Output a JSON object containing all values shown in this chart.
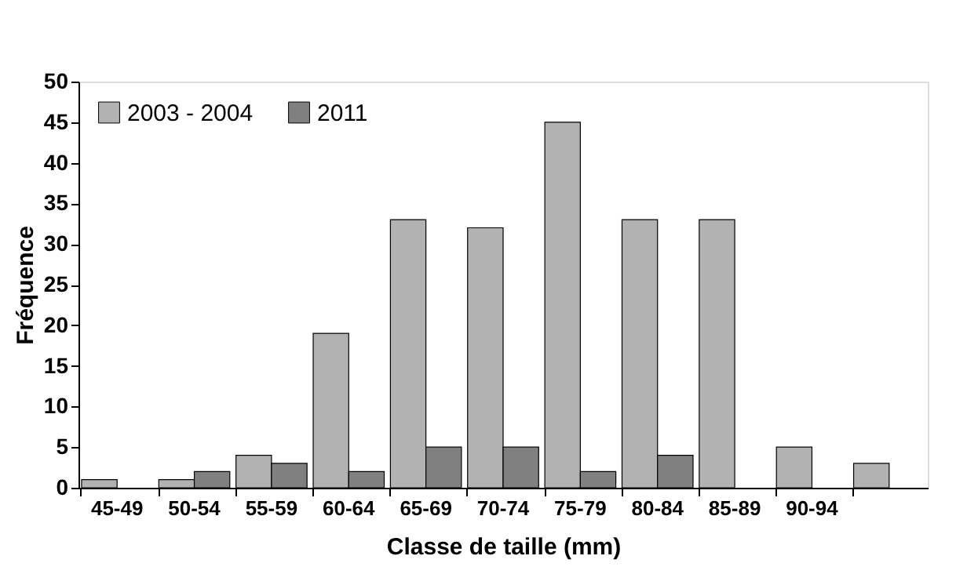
{
  "chart_data": {
    "type": "bar",
    "xlabel": "Classe de taille (mm)",
    "ylabel": "Fréquence",
    "categories": [
      "45-49",
      "50-54",
      "55-59",
      "60-64",
      "65-69",
      "70-74",
      "75-79",
      "80-84",
      "85-89",
      "90-94",
      null
    ],
    "series": [
      {
        "name": "2003 - 2004",
        "color": "#b2b2b2",
        "values": [
          1,
          1,
          4,
          19,
          33,
          32,
          45,
          33,
          33,
          5,
          3
        ]
      },
      {
        "name": "2011",
        "color": "#808080",
        "values": [
          null,
          2,
          3,
          2,
          5,
          5,
          2,
          4,
          null,
          null,
          null
        ]
      }
    ],
    "ylim": [
      0,
      50
    ],
    "yticks": [
      0,
      5,
      10,
      15,
      20,
      25,
      30,
      35,
      40,
      45,
      50
    ],
    "grid": false,
    "legend": "top left"
  }
}
